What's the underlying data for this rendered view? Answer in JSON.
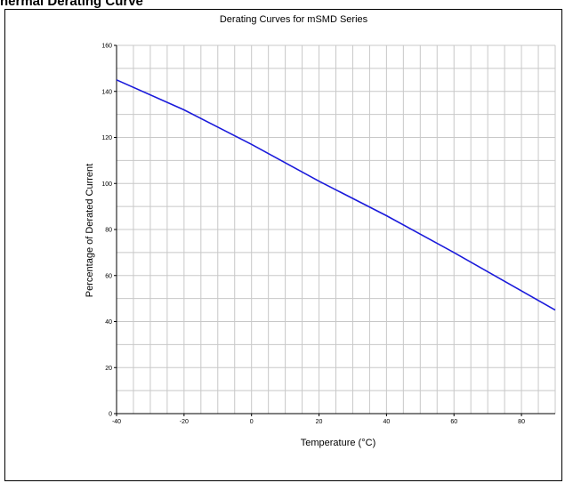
{
  "page": {
    "heading": "hermal Derating Curve"
  },
  "chart_data": {
    "type": "line",
    "title": "Derating Curves for mSMD Series",
    "xlabel": "Temperature (°C)",
    "ylabel": "Percentage of Derated Current",
    "xlim": [
      -40,
      90
    ],
    "ylim": [
      0,
      160
    ],
    "x_ticks": [
      -40,
      -20,
      0,
      20,
      40,
      60,
      80
    ],
    "y_ticks": [
      0,
      20,
      40,
      60,
      80,
      100,
      120,
      140,
      160
    ],
    "x_grid_step": 5,
    "y_grid_step": 10,
    "grid": true,
    "series": [
      {
        "color": "#1a1adb",
        "x": [
          -40,
          -20,
          0,
          20,
          40,
          60,
          90
        ],
        "y": [
          145,
          132,
          117,
          101,
          86,
          70,
          45
        ]
      }
    ]
  }
}
